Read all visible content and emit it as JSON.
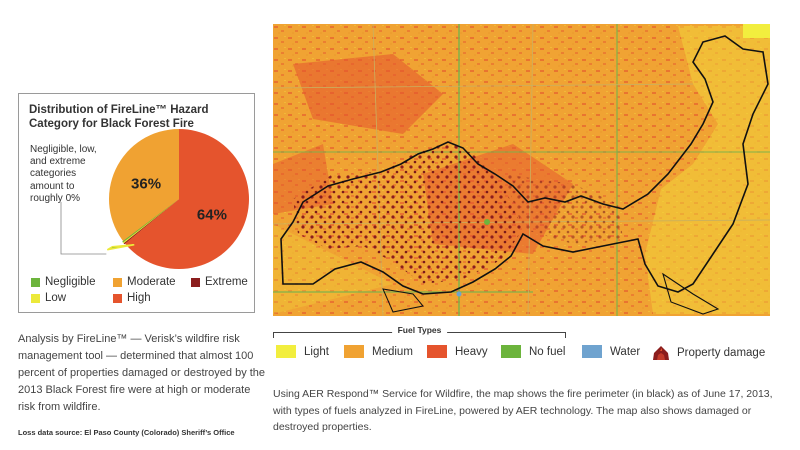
{
  "chart_data": {
    "type": "pie",
    "title": "Distribution of FireLine™ Hazard Category for Black Forest Fire",
    "annotation": "Negligible, low, and extreme categories amount to roughly 0%",
    "slices": [
      {
        "name": "Negligible",
        "value": 0,
        "label": "",
        "color": "#6cb43c"
      },
      {
        "name": "Low",
        "value": 0,
        "label": "",
        "color": "#ece93a"
      },
      {
        "name": "Moderate",
        "value": 36,
        "label": "36%",
        "color": "#f0a232"
      },
      {
        "name": "Extreme",
        "value": 0,
        "label": "",
        "color": "#8b1d1d"
      },
      {
        "name": "High",
        "value": 64,
        "label": "64%",
        "color": "#e5542d"
      }
    ],
    "legend": [
      {
        "name": "Negligible",
        "color": "#6cb43c"
      },
      {
        "name": "Moderate",
        "color": "#f0a232"
      },
      {
        "name": "Extreme",
        "color": "#8b1d1d"
      },
      {
        "name": "Low",
        "color": "#ece93a"
      },
      {
        "name": "High",
        "color": "#e5542d"
      }
    ]
  },
  "left_caption": "Analysis by FireLine™ — Verisk’s wildfire risk management tool — determined that almost 100 percent of properties damaged or destroyed by the 2013 Black Forest fire were at high or moderate risk from wildfire.",
  "source": "Loss data source: El Paso County (Colorado) Sheriff’s Office",
  "map": {
    "fuel_types_title": "Fuel Types",
    "fuel_types": [
      {
        "label": "Light",
        "color": "#f2ee3e",
        "icon": "light-fuel-swatch"
      },
      {
        "label": "Medium",
        "color": "#f0a232",
        "icon": "medium-fuel-swatch"
      },
      {
        "label": "Heavy",
        "color": "#e5542d",
        "icon": "heavy-fuel-swatch"
      },
      {
        "label": "No fuel",
        "color": "#6cb43c",
        "icon": "no-fuel-swatch"
      },
      {
        "label": "Water",
        "color": "#6fa3cf",
        "icon": "water-swatch"
      },
      {
        "label": "Property damage",
        "color": "#8b1d1d",
        "icon": "property-damage-icon"
      }
    ]
  },
  "right_caption": "Using AER Respond™ Service for Wildfire, the map shows the fire perimeter (in black) as of June 17, 2013, with types of fuels analyzed in FireLine, powered by AER technology. The map also shows damaged or destroyed properties."
}
